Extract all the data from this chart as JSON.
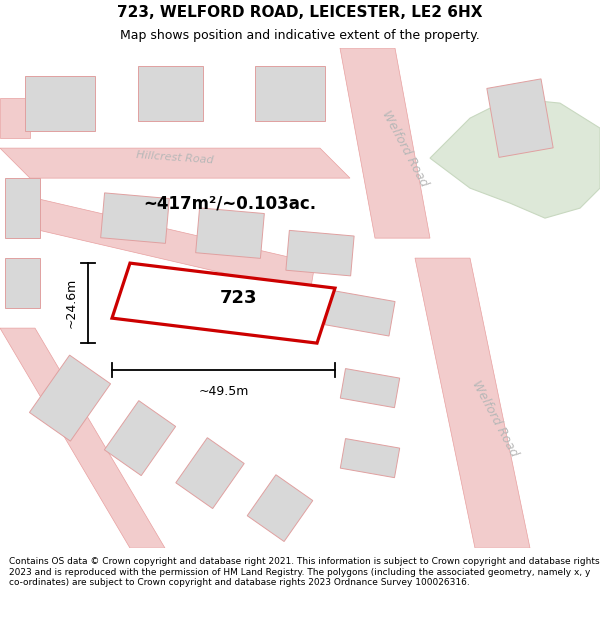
{
  "title": "723, WELFORD ROAD, LEICESTER, LE2 6HX",
  "subtitle": "Map shows position and indicative extent of the property.",
  "footer": "Contains OS data © Crown copyright and database right 2021. This information is subject to Crown copyright and database rights 2023 and is reproduced with the permission of HM Land Registry. The polygons (including the associated geometry, namely x, y co-ordinates) are subject to Crown copyright and database rights 2023 Ordnance Survey 100026316.",
  "map_bg": "#f7f3f3",
  "road_color": "#f2cccc",
  "road_stroke": "#e8a0a0",
  "building_fill": "#d8d8d8",
  "building_stroke": "#e0a0a0",
  "green_fill": "#dde8d8",
  "green_stroke": "#c8d8c0",
  "highlight_color": "#cc0000",
  "highlight_fill": "#ffffff",
  "area_text": "~417m²/~0.103ac.",
  "property_label": "723",
  "dim_width": "~49.5m",
  "dim_height": "~24.6m",
  "road_label_1": "Welford Road",
  "road_label_2": "Welford Road",
  "street_label": "Hillcrest Road",
  "title_fontsize": 11,
  "subtitle_fontsize": 9,
  "footer_fontsize": 6.5
}
